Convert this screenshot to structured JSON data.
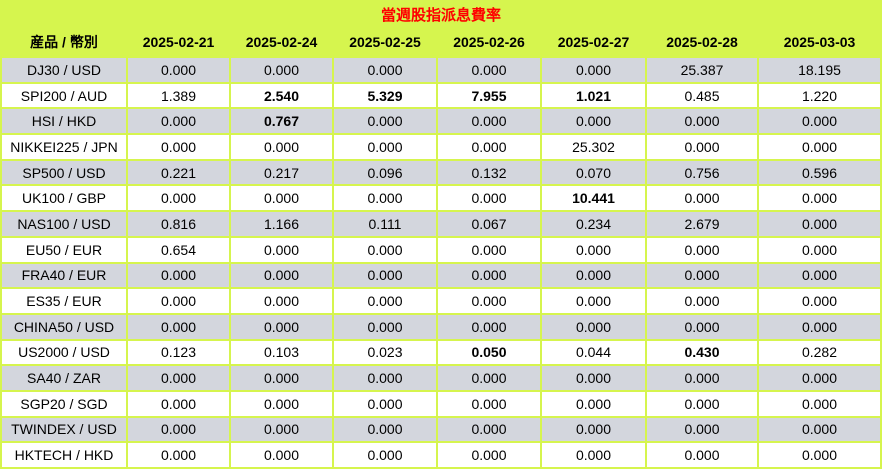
{
  "title": "當週股指派息費率",
  "colors": {
    "accent_green": "#D6F54E",
    "row_grey": "#D3D6DD",
    "row_white": "#FFFFFF",
    "title_red": "#FF0000",
    "text_black": "#000000"
  },
  "chart_data": {
    "type": "table",
    "title": "當週股指派息費率",
    "columns": [
      "産品 / 幣別",
      "2025-02-21",
      "2025-02-24",
      "2025-02-25",
      "2025-02-26",
      "2025-02-27",
      "2025-02-28",
      "2025-03-03"
    ],
    "rows": [
      {
        "product": "DJ30 / USD",
        "values": [
          "0.000",
          "0.000",
          "0.000",
          "0.000",
          "0.000",
          "25.387",
          "18.195"
        ],
        "bold_cols": []
      },
      {
        "product": "SPI200 / AUD",
        "values": [
          "1.389",
          "2.540",
          "5.329",
          "7.955",
          "1.021",
          "0.485",
          "1.220"
        ],
        "bold_cols": [
          1,
          2,
          3,
          4
        ]
      },
      {
        "product": "HSI / HKD",
        "values": [
          "0.000",
          "0.767",
          "0.000",
          "0.000",
          "0.000",
          "0.000",
          "0.000"
        ],
        "bold_cols": [
          1
        ]
      },
      {
        "product": "NIKKEI225 / JPN",
        "values": [
          "0.000",
          "0.000",
          "0.000",
          "0.000",
          "25.302",
          "0.000",
          "0.000"
        ],
        "bold_cols": []
      },
      {
        "product": "SP500 / USD",
        "values": [
          "0.221",
          "0.217",
          "0.096",
          "0.132",
          "0.070",
          "0.756",
          "0.596"
        ],
        "bold_cols": []
      },
      {
        "product": "UK100 / GBP",
        "values": [
          "0.000",
          "0.000",
          "0.000",
          "0.000",
          "10.441",
          "0.000",
          "0.000"
        ],
        "bold_cols": [
          4
        ]
      },
      {
        "product": "NAS100 / USD",
        "values": [
          "0.816",
          "1.166",
          "0.111",
          "0.067",
          "0.234",
          "2.679",
          "0.000"
        ],
        "bold_cols": []
      },
      {
        "product": "EU50 / EUR",
        "values": [
          "0.654",
          "0.000",
          "0.000",
          "0.000",
          "0.000",
          "0.000",
          "0.000"
        ],
        "bold_cols": []
      },
      {
        "product": "FRA40 / EUR",
        "values": [
          "0.000",
          "0.000",
          "0.000",
          "0.000",
          "0.000",
          "0.000",
          "0.000"
        ],
        "bold_cols": []
      },
      {
        "product": "ES35 / EUR",
        "values": [
          "0.000",
          "0.000",
          "0.000",
          "0.000",
          "0.000",
          "0.000",
          "0.000"
        ],
        "bold_cols": []
      },
      {
        "product": "CHINA50 / USD",
        "values": [
          "0.000",
          "0.000",
          "0.000",
          "0.000",
          "0.000",
          "0.000",
          "0.000"
        ],
        "bold_cols": []
      },
      {
        "product": "US2000 / USD",
        "values": [
          "0.123",
          "0.103",
          "0.023",
          "0.050",
          "0.044",
          "0.430",
          "0.282"
        ],
        "bold_cols": [
          3,
          5
        ]
      },
      {
        "product": "SA40 / ZAR",
        "values": [
          "0.000",
          "0.000",
          "0.000",
          "0.000",
          "0.000",
          "0.000",
          "0.000"
        ],
        "bold_cols": []
      },
      {
        "product": "SGP20 / SGD",
        "values": [
          "0.000",
          "0.000",
          "0.000",
          "0.000",
          "0.000",
          "0.000",
          "0.000"
        ],
        "bold_cols": []
      },
      {
        "product": "TWINDEX / USD",
        "values": [
          "0.000",
          "0.000",
          "0.000",
          "0.000",
          "0.000",
          "0.000",
          "0.000"
        ],
        "bold_cols": []
      },
      {
        "product": "HKTECH / HKD",
        "values": [
          "0.000",
          "0.000",
          "0.000",
          "0.000",
          "0.000",
          "0.000",
          "0.000"
        ],
        "bold_cols": []
      }
    ]
  }
}
